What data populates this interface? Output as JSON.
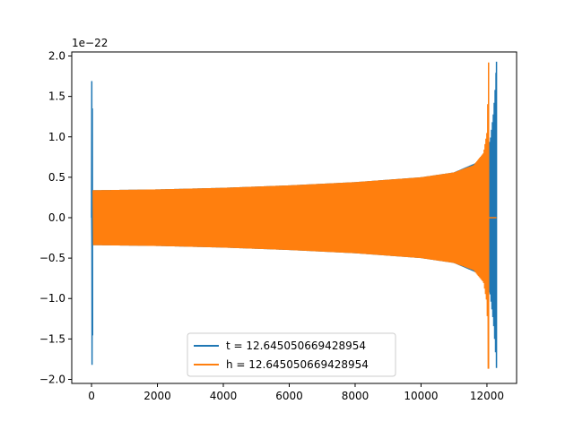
{
  "chart_data": {
    "type": "line",
    "title": "",
    "xlabel": "",
    "ylabel": "",
    "offset_text": "1e−22",
    "xlim": [
      -600,
      12900
    ],
    "ylim": [
      -2.05,
      2.05
    ],
    "x_ticks": [
      0,
      2000,
      4000,
      6000,
      8000,
      10000,
      12000
    ],
    "x_tick_labels": [
      "0",
      "2000",
      "4000",
      "6000",
      "8000",
      "10000",
      "12000"
    ],
    "y_ticks": [
      -2.0,
      -1.5,
      -1.0,
      -0.5,
      0.0,
      0.5,
      1.0,
      1.5,
      2.0
    ],
    "y_tick_labels": [
      "−2.0",
      "−1.5",
      "−1.0",
      "−0.5",
      "0.0",
      "0.5",
      "1.0",
      "1.5",
      "2.0"
    ],
    "grid": false,
    "legend_placement": "lower-center",
    "series": [
      {
        "name": "t = 12.645050669428954",
        "color": "#1f77b4",
        "x_start": 0,
        "x_end": 12290,
        "initial_spike": {
          "max": 1.69,
          "min": -1.82
        },
        "envelope": [
          [
            50,
            0.34
          ],
          [
            2000,
            0.35
          ],
          [
            4000,
            0.37
          ],
          [
            6000,
            0.4
          ],
          [
            8000,
            0.44
          ],
          [
            10000,
            0.5
          ],
          [
            11000,
            0.56
          ],
          [
            11800,
            0.7
          ],
          [
            12100,
            0.95
          ],
          [
            12200,
            1.3
          ],
          [
            12260,
            1.65
          ],
          [
            12290,
            1.93
          ]
        ],
        "envelope_min_end": -1.85,
        "tail_value": 0.0
      },
      {
        "name": "h = 12.645050669428954",
        "color": "#ff7f0e",
        "x_start": 50,
        "x_end": 12050,
        "envelope": [
          [
            50,
            0.34
          ],
          [
            2000,
            0.35
          ],
          [
            4000,
            0.37
          ],
          [
            6000,
            0.4
          ],
          [
            8000,
            0.44
          ],
          [
            10000,
            0.5
          ],
          [
            11000,
            0.56
          ],
          [
            11600,
            0.65
          ],
          [
            11900,
            0.8
          ],
          [
            12000,
            1.05
          ],
          [
            12040,
            1.6
          ],
          [
            12050,
            1.92
          ]
        ],
        "envelope_min_end": -1.86,
        "tail_x_end": 12290,
        "tail_value": 0.0
      }
    ]
  }
}
